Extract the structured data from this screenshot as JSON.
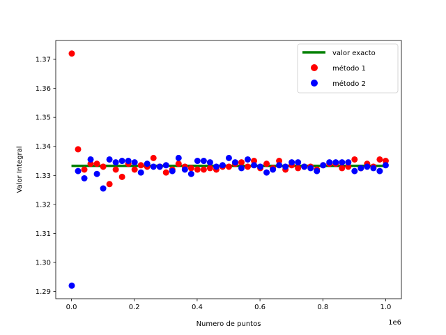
{
  "chart_data": {
    "type": "scatter",
    "xlabel": "Numero de puntos",
    "ylabel": "Valor Integral",
    "x_offset_text": "1e6",
    "xlim": [
      -0.05,
      1.05
    ],
    "ylim": [
      1.2875,
      1.3765
    ],
    "x_scale": 1000000,
    "xticks": [
      0.0,
      0.2,
      0.4,
      0.6,
      0.8,
      1.0
    ],
    "xtick_labels": [
      "0.0",
      "0.2",
      "0.4",
      "0.6",
      "0.8",
      "1.0"
    ],
    "yticks": [
      1.29,
      1.3,
      1.31,
      1.32,
      1.33,
      1.34,
      1.35,
      1.36,
      1.37
    ],
    "ytick_labels": [
      "1.29",
      "1.30",
      "1.31",
      "1.32",
      "1.33",
      "1.34",
      "1.35",
      "1.36",
      "1.37"
    ],
    "grid": false,
    "legend_position": "upper right",
    "series": [
      {
        "name": "valor exacto",
        "kind": "line",
        "color": "#008000",
        "x": [
          0.0,
          1.0
        ],
        "y": [
          1.3333,
          1.3333
        ]
      },
      {
        "name": "método 1",
        "kind": "scatter",
        "color": "#ff0000",
        "x": [
          0.001,
          0.021,
          0.041,
          0.061,
          0.081,
          0.101,
          0.121,
          0.141,
          0.161,
          0.181,
          0.201,
          0.221,
          0.241,
          0.261,
          0.281,
          0.301,
          0.321,
          0.341,
          0.361,
          0.381,
          0.401,
          0.421,
          0.441,
          0.461,
          0.481,
          0.501,
          0.521,
          0.541,
          0.561,
          0.581,
          0.601,
          0.621,
          0.641,
          0.661,
          0.681,
          0.701,
          0.721,
          0.741,
          0.761,
          0.781,
          0.801,
          0.821,
          0.841,
          0.861,
          0.881,
          0.901,
          0.921,
          0.941,
          0.961,
          0.981,
          1.0
        ],
        "y": [
          1.372,
          1.339,
          1.332,
          1.334,
          1.334,
          1.333,
          1.327,
          1.332,
          1.3295,
          1.334,
          1.332,
          1.3335,
          1.333,
          1.336,
          1.333,
          1.331,
          1.332,
          1.334,
          1.333,
          1.3325,
          1.332,
          1.332,
          1.3325,
          1.332,
          1.333,
          1.333,
          1.334,
          1.3345,
          1.333,
          1.335,
          1.3325,
          1.334,
          1.3325,
          1.335,
          1.332,
          1.3335,
          1.3325,
          1.333,
          1.333,
          1.332,
          1.3335,
          1.334,
          1.334,
          1.3325,
          1.333,
          1.3355,
          1.3325,
          1.334,
          1.333,
          1.3355,
          1.335
        ]
      },
      {
        "name": "método 2",
        "kind": "scatter",
        "color": "#0000ff",
        "x": [
          0.001,
          0.021,
          0.041,
          0.061,
          0.081,
          0.101,
          0.121,
          0.141,
          0.161,
          0.181,
          0.201,
          0.221,
          0.241,
          0.261,
          0.281,
          0.301,
          0.321,
          0.341,
          0.361,
          0.381,
          0.401,
          0.421,
          0.441,
          0.461,
          0.481,
          0.501,
          0.521,
          0.541,
          0.561,
          0.581,
          0.601,
          0.621,
          0.641,
          0.661,
          0.681,
          0.701,
          0.721,
          0.741,
          0.761,
          0.781,
          0.801,
          0.821,
          0.841,
          0.861,
          0.881,
          0.901,
          0.921,
          0.941,
          0.961,
          0.981,
          1.0
        ],
        "y": [
          1.292,
          1.3315,
          1.329,
          1.3355,
          1.3305,
          1.3255,
          1.3355,
          1.3345,
          1.335,
          1.335,
          1.3345,
          1.331,
          1.334,
          1.333,
          1.333,
          1.3335,
          1.3315,
          1.336,
          1.332,
          1.3305,
          1.335,
          1.335,
          1.3345,
          1.333,
          1.3335,
          1.336,
          1.3345,
          1.3325,
          1.3355,
          1.3335,
          1.333,
          1.331,
          1.332,
          1.3335,
          1.333,
          1.3345,
          1.3345,
          1.333,
          1.3325,
          1.3315,
          1.3335,
          1.3345,
          1.3345,
          1.3345,
          1.3345,
          1.3315,
          1.3325,
          1.333,
          1.3325,
          1.3315,
          1.3335
        ]
      }
    ]
  }
}
